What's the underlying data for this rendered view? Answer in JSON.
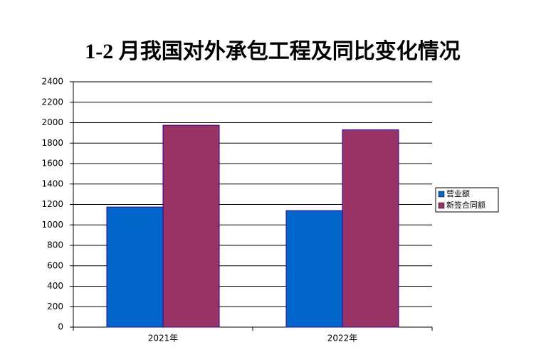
{
  "chart_data": {
    "type": "bar",
    "title": "1-2 月我国对外承包工程及同比变化情况",
    "categories": [
      "2021年",
      "2022年"
    ],
    "series": [
      {
        "name": "营业额",
        "color": "#0066cc",
        "values": [
          1175,
          1140
        ]
      },
      {
        "name": "新签合同额",
        "color": "#993366",
        "values": [
          1975,
          1930
        ]
      }
    ],
    "ylim": [
      0,
      2400
    ],
    "yticks": [
      0,
      200,
      400,
      600,
      800,
      1000,
      1200,
      1400,
      1600,
      1800,
      2000,
      2200,
      2400
    ],
    "grid": true,
    "legend": "right"
  }
}
